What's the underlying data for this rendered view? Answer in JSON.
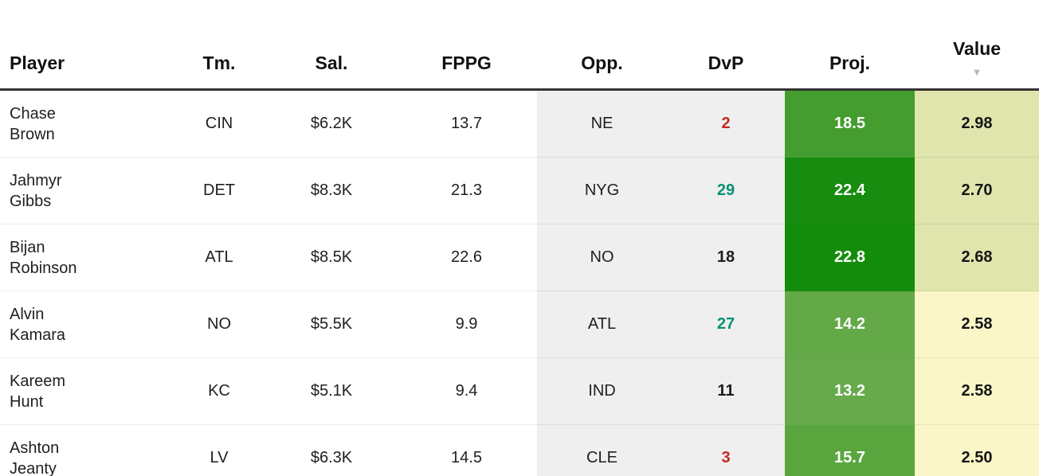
{
  "table": {
    "columns": [
      {
        "key": "player",
        "label": "Player"
      },
      {
        "key": "tm",
        "label": "Tm."
      },
      {
        "key": "sal",
        "label": "Sal."
      },
      {
        "key": "fppg",
        "label": "FPPG"
      },
      {
        "key": "opp",
        "label": "Opp."
      },
      {
        "key": "dvp",
        "label": "DvP"
      },
      {
        "key": "proj",
        "label": "Proj."
      },
      {
        "key": "value",
        "label": "Value",
        "sorted": true,
        "sort_direction": "desc"
      }
    ],
    "sort_icon": "▼",
    "rows": [
      {
        "player_first": "Chase",
        "player_last": "Brown",
        "tm": "CIN",
        "sal": "$6.2K",
        "fppg": "13.7",
        "opp": "NE",
        "dvp": "2",
        "dvp_color": "#c42a26",
        "proj": "18.5",
        "proj_bg": "#449d2e",
        "value": "2.98",
        "value_bg": "#dfe5ac"
      },
      {
        "player_first": "Jahmyr",
        "player_last": "Gibbs",
        "tm": "DET",
        "sal": "$8.3K",
        "fppg": "21.3",
        "opp": "NYG",
        "dvp": "29",
        "dvp_color": "#0b9077",
        "proj": "22.4",
        "proj_bg": "#178c0e",
        "value": "2.70",
        "value_bg": "#dfe5ac"
      },
      {
        "player_first": "Bijan",
        "player_last": "Robinson",
        "tm": "ATL",
        "sal": "$8.5K",
        "fppg": "22.6",
        "opp": "NO",
        "dvp": "18",
        "dvp_color": "#1d1d1d",
        "proj": "22.8",
        "proj_bg": "#128c0a",
        "value": "2.68",
        "value_bg": "#dfe5ac"
      },
      {
        "player_first": "Alvin",
        "player_last": "Kamara",
        "tm": "NO",
        "sal": "$5.5K",
        "fppg": "9.9",
        "opp": "ATL",
        "dvp": "27",
        "dvp_color": "#0b9077",
        "proj": "14.2",
        "proj_bg": "#63a947",
        "value": "2.58",
        "value_bg": "#fbf6c8"
      },
      {
        "player_first": "Kareem",
        "player_last": "Hunt",
        "tm": "KC",
        "sal": "$5.1K",
        "fppg": "9.4",
        "opp": "IND",
        "dvp": "11",
        "dvp_color": "#1d1d1d",
        "proj": "13.2",
        "proj_bg": "#66aa4b",
        "value": "2.58",
        "value_bg": "#fbf6c8"
      },
      {
        "player_first": "Ashton",
        "player_last": "Jeanty",
        "tm": "LV",
        "sal": "$6.3K",
        "fppg": "14.5",
        "opp": "CLE",
        "dvp": "3",
        "dvp_color": "#c42a26",
        "proj": "15.7",
        "proj_bg": "#5aa63e",
        "value": "2.50",
        "value_bg": "#fbf6c8"
      }
    ],
    "colors": {
      "header_border": "#333333",
      "opp_dvp_bg": "#efefef",
      "dvp_red": "#c42a26",
      "dvp_teal": "#0b9077",
      "sort_icon_color": "#b9b9b9"
    }
  }
}
